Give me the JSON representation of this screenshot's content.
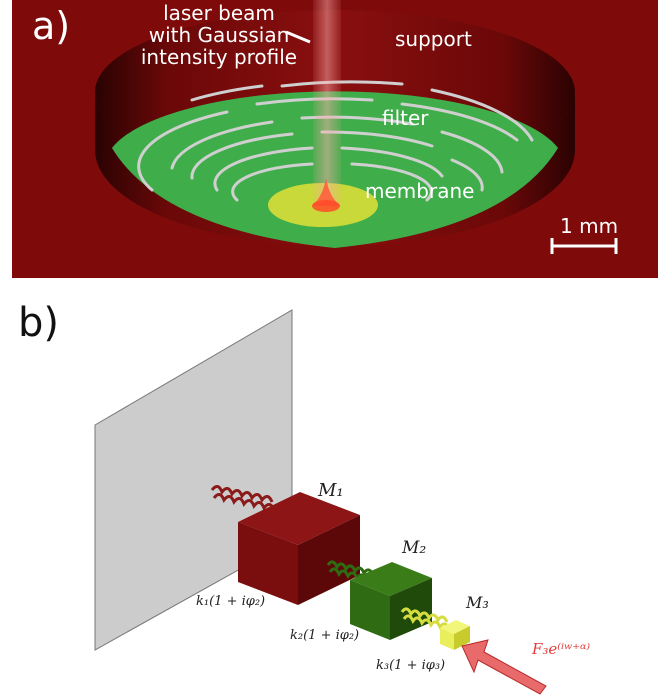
{
  "panel_a": {
    "label": "a)",
    "beam_label": [
      "laser beam",
      "with Gaussian",
      "intensity profile"
    ],
    "support_label": "support",
    "filter_label": "filter",
    "membrane_label": "membrane",
    "scale_label": "1 mm"
  },
  "panel_b": {
    "label": "b)",
    "mass1": "M₁",
    "mass2": "M₂",
    "mass3": "M₃",
    "spring1": "k₁(1 + iφ₂)",
    "spring2": "k₂(1 + iφ₂)",
    "spring3": "k₃(1 + iφ₃)",
    "force": "F₃e⁽ⁱʷ⁺ᵅ⁾"
  },
  "colors": {
    "support": "#7e0a0a",
    "filter": "#3fae4a",
    "membrane": "#c9d93a",
    "mass1": "#7a0d0d",
    "mass2": "#2f6b12",
    "mass3": "#e9ef5c",
    "force_arrow": "#e03838"
  }
}
